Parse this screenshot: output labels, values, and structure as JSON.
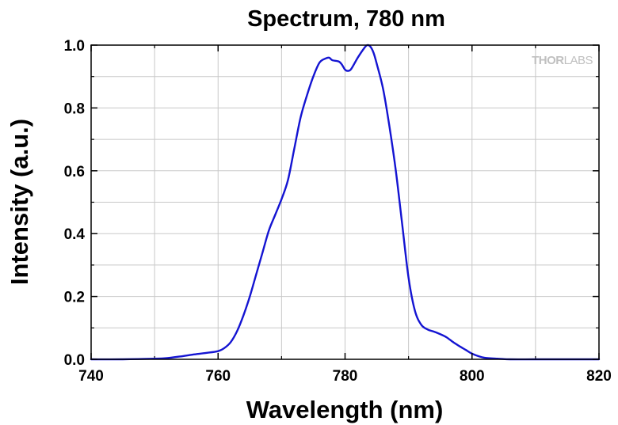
{
  "chart_data": {
    "type": "line",
    "title": "Spectrum, 780 nm",
    "xlabel": "Wavelength (nm)",
    "ylabel": "Intensity (a.u.)",
    "xlim": [
      740,
      820
    ],
    "ylim": [
      0.0,
      1.0
    ],
    "x_ticks": [
      "740",
      "760",
      "780",
      "800",
      "820"
    ],
    "y_ticks": [
      "0.0",
      "0.2",
      "0.4",
      "0.6",
      "0.8",
      "1.0"
    ],
    "x_tick_values": [
      740,
      760,
      780,
      800,
      820
    ],
    "y_tick_values": [
      0.0,
      0.2,
      0.4,
      0.6,
      0.8,
      1.0
    ],
    "grid": true,
    "series": [
      {
        "color": "#1414d2",
        "x": [
          740,
          745,
          750,
          752,
          754,
          756,
          758,
          760,
          761,
          762,
          763,
          764,
          765,
          766,
          767,
          768,
          769,
          770,
          771,
          772,
          773,
          774,
          775,
          776,
          777,
          777.5,
          778,
          779,
          779.5,
          780,
          780.5,
          781,
          782,
          783,
          783.5,
          784,
          784.5,
          785,
          786,
          787,
          788,
          789,
          790,
          791,
          792,
          793,
          794,
          795,
          796,
          797,
          798,
          799,
          800,
          801,
          802,
          804,
          806,
          810,
          815,
          820
        ],
        "y": [
          0.0,
          0.0,
          0.002,
          0.004,
          0.009,
          0.015,
          0.02,
          0.026,
          0.036,
          0.055,
          0.09,
          0.14,
          0.2,
          0.27,
          0.34,
          0.41,
          0.46,
          0.51,
          0.57,
          0.67,
          0.77,
          0.84,
          0.9,
          0.945,
          0.958,
          0.96,
          0.952,
          0.948,
          0.938,
          0.922,
          0.918,
          0.925,
          0.96,
          0.99,
          1.0,
          0.995,
          0.975,
          0.94,
          0.86,
          0.74,
          0.6,
          0.43,
          0.26,
          0.155,
          0.11,
          0.095,
          0.088,
          0.08,
          0.07,
          0.055,
          0.042,
          0.03,
          0.018,
          0.01,
          0.005,
          0.002,
          0.0,
          0.0,
          0.0,
          0.0
        ]
      }
    ]
  },
  "logo": {
    "part1": "THOR",
    "part2": "LABS"
  }
}
